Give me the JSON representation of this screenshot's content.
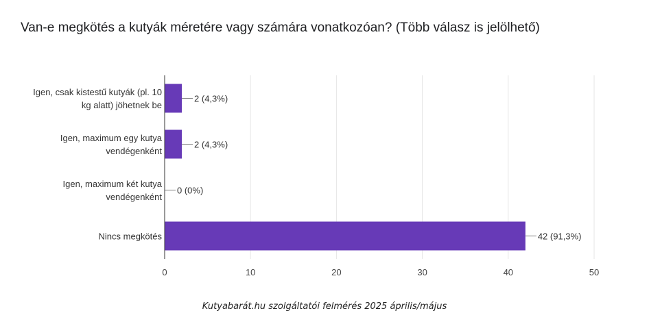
{
  "chart_data": {
    "type": "bar",
    "orientation": "horizontal",
    "title": "Van-e megkötés a kutyák méretére vagy számára vonatkozóan? (Több válasz is jelölhető)",
    "categories": [
      [
        "Igen, csak kistestű kutyák (pl. 10",
        "kg alatt) jöhetnek be"
      ],
      [
        "Igen, maximum egy kutya",
        "vendégenként"
      ],
      [
        "Igen, maximum két kutya",
        "vendégenként"
      ],
      [
        "Nincs megkötés"
      ]
    ],
    "values": [
      2,
      2,
      0,
      42
    ],
    "data_labels": [
      "2 (4,3%)",
      "2 (4,3%)",
      "0 (0%)",
      "42 (91,3%)"
    ],
    "xlim": [
      0,
      50
    ],
    "xticks": [
      0,
      10,
      20,
      30,
      40,
      50
    ],
    "grid": true,
    "bar_color": "#673ab7"
  },
  "footer": {
    "source_note": "Kutyabarát.hu szolgáltatói felmérés 2025 április/május"
  }
}
